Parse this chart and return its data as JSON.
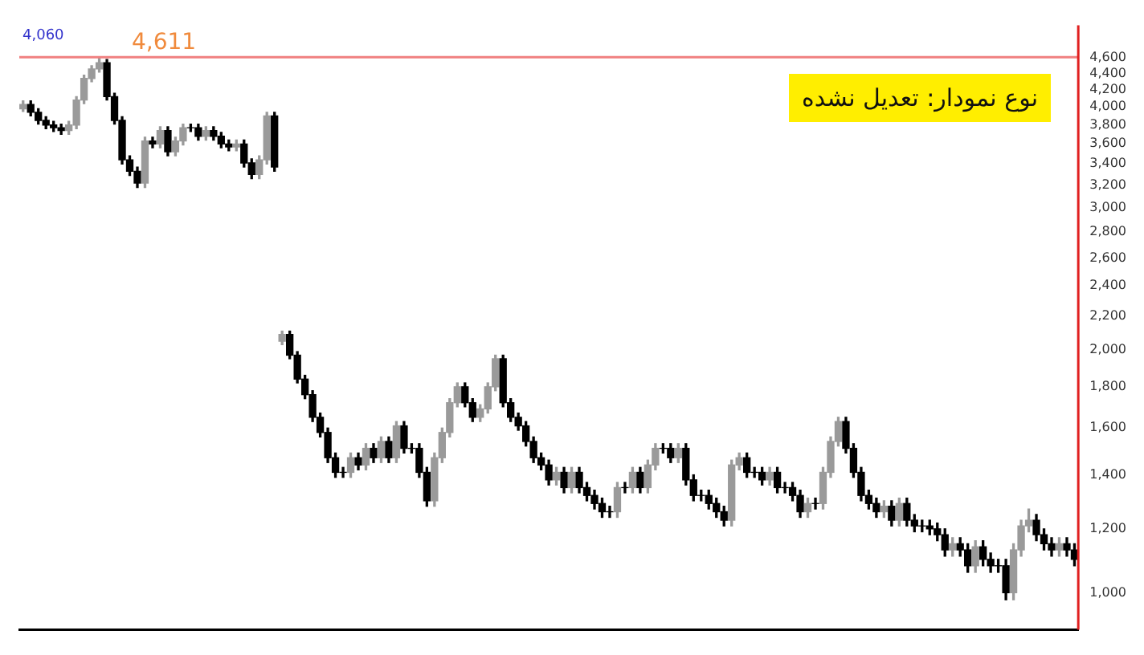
{
  "chart_data": {
    "type": "candlestick",
    "title": "نوع نمودار: تعدیل نشده",
    "annotations": [
      "4,060"
    ],
    "categories": [
      null,
      null,
      null,
      null,
      null,
      null,
      null,
      null,
      null,
      null,
      null,
      null,
      null,
      null,
      null,
      null,
      null,
      null,
      null,
      null,
      null,
      null,
      null,
      null,
      null,
      null,
      null,
      null,
      null,
      null,
      null,
      null,
      null,
      null,
      null,
      null,
      null,
      null,
      null,
      null,
      null,
      null,
      null,
      null,
      null,
      null,
      null,
      null,
      null,
      null,
      null,
      null,
      null,
      null,
      null,
      null,
      null,
      null,
      null,
      null,
      null,
      null,
      null,
      null,
      null,
      null,
      null,
      null,
      null,
      null,
      null,
      null,
      null,
      null,
      null,
      null,
      null,
      null,
      null,
      null,
      null,
      null,
      null,
      null,
      null,
      null,
      null,
      null,
      null,
      null,
      null,
      null,
      null,
      null,
      null,
      null,
      null,
      null,
      null,
      null,
      null,
      null,
      null,
      null,
      null,
      null,
      null,
      null,
      null,
      null,
      null,
      null,
      null,
      null,
      null,
      null,
      null,
      null,
      null,
      null,
      null,
      null,
      null,
      null,
      null,
      null,
      null,
      null,
      null,
      null,
      null,
      null,
      null,
      null,
      null,
      null,
      null,
      null,
      null
    ],
    "ohlc": [
      [
        3980,
        4070,
        3950,
        4030
      ],
      [
        4030,
        4070,
        3900,
        3940
      ],
      [
        3940,
        3980,
        3810,
        3850
      ],
      [
        3850,
        3890,
        3760,
        3800
      ],
      [
        3800,
        3840,
        3730,
        3770
      ],
      [
        3770,
        3810,
        3700,
        3740
      ],
      [
        3740,
        3840,
        3700,
        3800
      ],
      [
        3800,
        4120,
        3760,
        4080
      ],
      [
        4080,
        4380,
        4040,
        4340
      ],
      [
        4340,
        4500,
        4300,
        4460
      ],
      [
        4460,
        4600,
        4420,
        4540
      ],
      [
        4540,
        4580,
        4080,
        4120
      ],
      [
        4120,
        4160,
        3810,
        3850
      ],
      [
        3850,
        3890,
        3400,
        3440
      ],
      [
        3440,
        3480,
        3290,
        3330
      ],
      [
        3330,
        3370,
        3180,
        3220
      ],
      [
        3220,
        3670,
        3180,
        3630
      ],
      [
        3630,
        3670,
        3560,
        3600
      ],
      [
        3600,
        3780,
        3560,
        3740
      ],
      [
        3740,
        3780,
        3480,
        3520
      ],
      [
        3520,
        3670,
        3480,
        3630
      ],
      [
        3630,
        3810,
        3590,
        3770
      ],
      [
        3770,
        3810,
        3730,
        3770
      ],
      [
        3770,
        3810,
        3640,
        3680
      ],
      [
        3680,
        3780,
        3640,
        3740
      ],
      [
        3740,
        3780,
        3640,
        3680
      ],
      [
        3680,
        3720,
        3560,
        3600
      ],
      [
        3600,
        3640,
        3530,
        3570
      ],
      [
        3570,
        3640,
        3530,
        3600
      ],
      [
        3600,
        3640,
        3370,
        3410
      ],
      [
        3410,
        3450,
        3260,
        3300
      ],
      [
        3300,
        3480,
        3260,
        3440
      ],
      [
        3440,
        3940,
        3400,
        3900
      ],
      [
        3900,
        3940,
        3330,
        3370
      ],
      [
        2050,
        2110,
        2030,
        2090
      ],
      [
        2090,
        2110,
        1950,
        1970
      ],
      [
        1970,
        1990,
        1820,
        1840
      ],
      [
        1840,
        1860,
        1740,
        1760
      ],
      [
        1760,
        1780,
        1630,
        1650
      ],
      [
        1650,
        1670,
        1560,
        1580
      ],
      [
        1580,
        1600,
        1450,
        1470
      ],
      [
        1470,
        1490,
        1390,
        1410
      ],
      [
        1410,
        1430,
        1390,
        1410
      ],
      [
        1410,
        1490,
        1390,
        1470
      ],
      [
        1470,
        1490,
        1420,
        1440
      ],
      [
        1440,
        1530,
        1420,
        1510
      ],
      [
        1510,
        1530,
        1450,
        1470
      ],
      [
        1470,
        1560,
        1450,
        1540
      ],
      [
        1540,
        1560,
        1450,
        1470
      ],
      [
        1470,
        1630,
        1450,
        1610
      ],
      [
        1610,
        1630,
        1490,
        1510
      ],
      [
        1510,
        1530,
        1490,
        1510
      ],
      [
        1510,
        1530,
        1390,
        1410
      ],
      [
        1410,
        1430,
        1280,
        1300
      ],
      [
        1300,
        1490,
        1280,
        1470
      ],
      [
        1470,
        1600,
        1450,
        1580
      ],
      [
        1580,
        1740,
        1560,
        1720
      ],
      [
        1720,
        1820,
        1700,
        1800
      ],
      [
        1800,
        1820,
        1700,
        1720
      ],
      [
        1720,
        1740,
        1630,
        1650
      ],
      [
        1650,
        1710,
        1630,
        1690
      ],
      [
        1690,
        1820,
        1670,
        1800
      ],
      [
        1800,
        1970,
        1780,
        1950
      ],
      [
        1950,
        1970,
        1700,
        1720
      ],
      [
        1720,
        1740,
        1630,
        1650
      ],
      [
        1650,
        1670,
        1590,
        1610
      ],
      [
        1610,
        1630,
        1520,
        1540
      ],
      [
        1540,
        1560,
        1450,
        1470
      ],
      [
        1470,
        1490,
        1420,
        1440
      ],
      [
        1440,
        1460,
        1360,
        1380
      ],
      [
        1380,
        1430,
        1360,
        1410
      ],
      [
        1410,
        1430,
        1330,
        1350
      ],
      [
        1350,
        1430,
        1330,
        1410
      ],
      [
        1410,
        1430,
        1330,
        1350
      ],
      [
        1350,
        1370,
        1300,
        1320
      ],
      [
        1320,
        1340,
        1270,
        1290
      ],
      [
        1290,
        1310,
        1240,
        1260
      ],
      [
        1260,
        1280,
        1240,
        1260
      ],
      [
        1260,
        1370,
        1240,
        1350
      ],
      [
        1350,
        1370,
        1330,
        1350
      ],
      [
        1350,
        1430,
        1330,
        1410
      ],
      [
        1410,
        1430,
        1330,
        1350
      ],
      [
        1350,
        1460,
        1330,
        1440
      ],
      [
        1440,
        1530,
        1420,
        1510
      ],
      [
        1510,
        1530,
        1490,
        1510
      ],
      [
        1510,
        1530,
        1450,
        1470
      ],
      [
        1470,
        1530,
        1450,
        1510
      ],
      [
        1510,
        1530,
        1360,
        1380
      ],
      [
        1380,
        1400,
        1300,
        1320
      ],
      [
        1320,
        1340,
        1300,
        1320
      ],
      [
        1320,
        1340,
        1270,
        1290
      ],
      [
        1290,
        1310,
        1240,
        1260
      ],
      [
        1260,
        1280,
        1210,
        1230
      ],
      [
        1230,
        1460,
        1210,
        1440
      ],
      [
        1440,
        1490,
        1420,
        1470
      ],
      [
        1470,
        1490,
        1390,
        1410
      ],
      [
        1410,
        1430,
        1390,
        1410
      ],
      [
        1410,
        1430,
        1360,
        1380
      ],
      [
        1380,
        1430,
        1360,
        1410
      ],
      [
        1410,
        1430,
        1330,
        1350
      ],
      [
        1350,
        1370,
        1330,
        1350
      ],
      [
        1350,
        1370,
        1300,
        1320
      ],
      [
        1320,
        1340,
        1240,
        1260
      ],
      [
        1260,
        1310,
        1240,
        1290
      ],
      [
        1290,
        1310,
        1270,
        1290
      ],
      [
        1290,
        1430,
        1270,
        1410
      ],
      [
        1410,
        1560,
        1390,
        1540
      ],
      [
        1540,
        1650,
        1520,
        1630
      ],
      [
        1630,
        1650,
        1490,
        1510
      ],
      [
        1510,
        1530,
        1390,
        1410
      ],
      [
        1410,
        1430,
        1300,
        1320
      ],
      [
        1320,
        1340,
        1270,
        1290
      ],
      [
        1290,
        1310,
        1240,
        1260
      ],
      [
        1260,
        1300,
        1240,
        1280
      ],
      [
        1280,
        1300,
        1210,
        1230
      ],
      [
        1230,
        1310,
        1210,
        1290
      ],
      [
        1290,
        1310,
        1210,
        1230
      ],
      [
        1230,
        1250,
        1190,
        1210
      ],
      [
        1210,
        1230,
        1190,
        1210
      ],
      [
        1210,
        1230,
        1180,
        1200
      ],
      [
        1200,
        1220,
        1160,
        1180
      ],
      [
        1180,
        1200,
        1110,
        1130
      ],
      [
        1130,
        1170,
        1110,
        1150
      ],
      [
        1150,
        1170,
        1110,
        1130
      ],
      [
        1130,
        1150,
        1060,
        1080
      ],
      [
        1080,
        1160,
        1060,
        1140
      ],
      [
        1140,
        1160,
        1080,
        1100
      ],
      [
        1100,
        1120,
        1060,
        1080
      ],
      [
        1080,
        1100,
        1060,
        1080
      ],
      [
        1080,
        1100,
        980,
        1000
      ],
      [
        1000,
        1150,
        980,
        1130
      ],
      [
        1130,
        1230,
        1110,
        1210
      ],
      [
        1210,
        1270,
        1190,
        1230
      ],
      [
        1230,
        1250,
        1160,
        1180
      ],
      [
        1180,
        1200,
        1130,
        1150
      ],
      [
        1150,
        1170,
        1110,
        1130
      ],
      [
        1130,
        1170,
        1110,
        1150
      ],
      [
        1150,
        1170,
        1110,
        1130
      ],
      [
        1130,
        1150,
        1080,
        1100
      ]
    ],
    "colors": [
      "#9a9a9a",
      "#000000",
      "#000000",
      "#000000",
      "#000000",
      "#000000",
      "#9a9a9a",
      "#9a9a9a",
      "#9a9a9a",
      "#9a9a9a",
      "#9a9a9a",
      "#000000",
      "#000000",
      "#000000",
      "#000000",
      "#000000",
      "#9a9a9a",
      "#000000",
      "#9a9a9a",
      "#000000",
      "#9a9a9a",
      "#9a9a9a",
      "#000000",
      "#000000",
      "#9a9a9a",
      "#000000",
      "#000000",
      "#000000",
      "#9a9a9a",
      "#000000",
      "#000000",
      "#9a9a9a",
      "#9a9a9a",
      "#000000",
      "#9a9a9a",
      "#000000",
      "#000000",
      "#000000",
      "#000000",
      "#000000",
      "#000000",
      "#000000",
      "#000000",
      "#9a9a9a",
      "#000000",
      "#9a9a9a",
      "#000000",
      "#9a9a9a",
      "#000000",
      "#9a9a9a",
      "#000000",
      "#000000",
      "#000000",
      "#000000",
      "#9a9a9a",
      "#9a9a9a",
      "#9a9a9a",
      "#9a9a9a",
      "#000000",
      "#000000",
      "#9a9a9a",
      "#9a9a9a",
      "#9a9a9a",
      "#000000",
      "#000000",
      "#000000",
      "#000000",
      "#000000",
      "#000000",
      "#000000",
      "#9a9a9a",
      "#000000",
      "#9a9a9a",
      "#000000",
      "#000000",
      "#000000",
      "#000000",
      "#000000",
      "#9a9a9a",
      "#000000",
      "#9a9a9a",
      "#000000",
      "#9a9a9a",
      "#9a9a9a",
      "#000000",
      "#000000",
      "#9a9a9a",
      "#000000",
      "#000000",
      "#000000",
      "#000000",
      "#000000",
      "#000000",
      "#9a9a9a",
      "#9a9a9a",
      "#000000",
      "#000000",
      "#000000",
      "#9a9a9a",
      "#000000",
      "#000000",
      "#000000",
      "#000000",
      "#9a9a9a",
      "#000000",
      "#9a9a9a",
      "#9a9a9a",
      "#9a9a9a",
      "#000000",
      "#000000",
      "#000000",
      "#000000",
      "#000000",
      "#9a9a9a",
      "#000000",
      "#9a9a9a",
      "#000000",
      "#000000",
      "#000000",
      "#000000",
      "#000000",
      "#000000",
      "#9a9a9a",
      "#000000",
      "#000000",
      "#9a9a9a",
      "#000000",
      "#000000",
      "#000000",
      "#000000",
      "#9a9a9a",
      "#9a9a9a",
      "#9a9a9a",
      "#000000",
      "#000000",
      "#000000",
      "#9a9a9a",
      "#000000",
      "#000000"
    ],
    "log": "y",
    "ylim": [
      900,
      5050
    ],
    "yticks": [
      {
        "value": 1000,
        "label": "1,000"
      },
      {
        "value": 1200,
        "label": "1,200"
      },
      {
        "value": 1400,
        "label": "1,400"
      },
      {
        "value": 1600,
        "label": "1,600"
      },
      {
        "value": 1800,
        "label": "1,800"
      },
      {
        "value": 2000,
        "label": "2,000"
      },
      {
        "value": 2200,
        "label": "2,200"
      },
      {
        "value": 2400,
        "label": "2,400"
      },
      {
        "value": 2600,
        "label": "2,600"
      },
      {
        "value": 2800,
        "label": "2,800"
      },
      {
        "value": 3000,
        "label": "3,000"
      },
      {
        "value": 3200,
        "label": "3,200"
      },
      {
        "value": 3400,
        "label": "3,400"
      },
      {
        "value": 3600,
        "label": "3,600"
      },
      {
        "value": 3800,
        "label": "3,800"
      },
      {
        "value": 4000,
        "label": "4,000"
      },
      {
        "value": 4200,
        "label": "4,200"
      },
      {
        "value": 4400,
        "label": "4,400"
      },
      {
        "value": 4600,
        "label": "4,600"
      }
    ],
    "ref_lines": [
      {
        "axis": "y",
        "value": 4611,
        "label": "4,611",
        "color": "#f08080"
      }
    ],
    "grid": false,
    "legend": false,
    "tick_labels": "y"
  }
}
